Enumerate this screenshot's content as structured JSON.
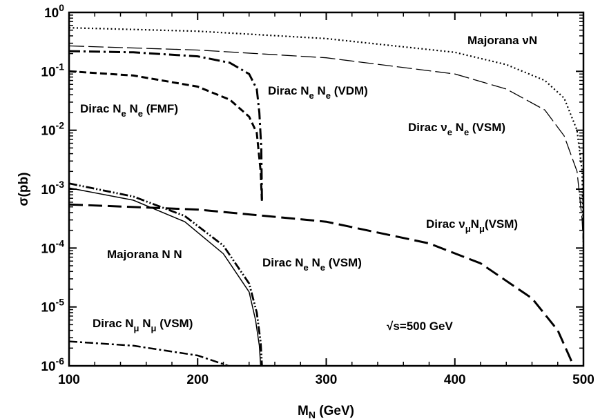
{
  "chart_data": {
    "type": "line",
    "title": "",
    "xlabel": {
      "main": "M",
      "sub": "N",
      "rest": " (GeV)"
    },
    "ylabel": "σ(pb)",
    "xlim": [
      100,
      500
    ],
    "ylim": [
      1e-06,
      1
    ],
    "y_scale": "log",
    "grid": false,
    "x_ticks": [
      "100",
      "200",
      "300",
      "400",
      "500"
    ],
    "y_ticks": [
      {
        "value": 1.0,
        "base": "10",
        "exp": "0"
      },
      {
        "value": 0.1,
        "base": "10",
        "exp": "-1"
      },
      {
        "value": 0.01,
        "base": "10",
        "exp": "-2"
      },
      {
        "value": 0.001,
        "base": "10",
        "exp": "-3"
      },
      {
        "value": 0.0001,
        "base": "10",
        "exp": "-4"
      },
      {
        "value": 1e-05,
        "base": "10",
        "exp": "-5"
      },
      {
        "value": 1e-06,
        "base": "10",
        "exp": "-6"
      }
    ],
    "series": [
      {
        "name": "Majorana νN",
        "style": "dotted",
        "points": [
          [
            100,
            0.55
          ],
          [
            200,
            0.48
          ],
          [
            300,
            0.36
          ],
          [
            400,
            0.21
          ],
          [
            440,
            0.13
          ],
          [
            470,
            0.07
          ],
          [
            485,
            0.035
          ],
          [
            495,
            0.01
          ],
          [
            499,
            0.002
          ],
          [
            500,
            0.0001
          ]
        ]
      },
      {
        "name": "Dirac νe Ne (VSM)",
        "style": "long-dash-thin",
        "points": [
          [
            100,
            0.27
          ],
          [
            200,
            0.23
          ],
          [
            300,
            0.17
          ],
          [
            400,
            0.09
          ],
          [
            440,
            0.05
          ],
          [
            470,
            0.022
          ],
          [
            485,
            0.008
          ],
          [
            495,
            0.002
          ],
          [
            499,
            0.0003
          ],
          [
            500,
            0.0001
          ]
        ]
      },
      {
        "name": "Dirac Ne Ne (VDM)",
        "style": "dash-dot-thick",
        "points": [
          [
            100,
            0.22
          ],
          [
            150,
            0.21
          ],
          [
            200,
            0.18
          ],
          [
            225,
            0.14
          ],
          [
            240,
            0.09
          ],
          [
            246,
            0.05
          ],
          [
            248,
            0.02
          ],
          [
            249.5,
            0.005
          ],
          [
            250,
            0.0006
          ]
        ]
      },
      {
        "name": "Dirac Ne Ne (FMF)",
        "style": "dash-thick",
        "points": [
          [
            100,
            0.1
          ],
          [
            150,
            0.085
          ],
          [
            200,
            0.055
          ],
          [
            225,
            0.033
          ],
          [
            240,
            0.017
          ],
          [
            246,
            0.009
          ],
          [
            249,
            0.002
          ],
          [
            250,
            0.0006
          ]
        ]
      },
      {
        "name": "Dirac νμNμ(VSM)",
        "style": "long-dash-thick",
        "points": [
          [
            100,
            0.00055
          ],
          [
            200,
            0.00045
          ],
          [
            300,
            0.00028
          ],
          [
            380,
            0.00012
          ],
          [
            420,
            5.5e-05
          ],
          [
            460,
            1.4e-05
          ],
          [
            480,
            4e-06
          ],
          [
            490,
            1.3e-06
          ],
          [
            492,
            1e-06
          ]
        ]
      },
      {
        "name": "Dirac Ne Ne (VSM)",
        "style": "dash-dot-dot",
        "points": [
          [
            100,
            0.00125
          ],
          [
            150,
            0.00075
          ],
          [
            190,
            0.00035
          ],
          [
            220,
            0.00011
          ],
          [
            240,
            2.5e-05
          ],
          [
            246,
            8e-06
          ],
          [
            249,
            2.5e-06
          ],
          [
            250,
            1e-06
          ]
        ]
      },
      {
        "name": "Majorana N N",
        "style": "solid",
        "points": [
          [
            100,
            0.00105
          ],
          [
            150,
            0.00065
          ],
          [
            190,
            0.00028
          ],
          [
            220,
            8e-05
          ],
          [
            240,
            1.8e-05
          ],
          [
            245,
            6e-06
          ],
          [
            248,
            2.2e-06
          ],
          [
            249,
            1e-06
          ]
        ]
      },
      {
        "name": "Dirac Nμ Nμ (VSM)",
        "style": "dash-dot",
        "points": [
          [
            100,
            2.6e-06
          ],
          [
            150,
            2.2e-06
          ],
          [
            200,
            1.5e-06
          ],
          [
            224,
            1e-06
          ]
        ]
      }
    ],
    "annotations": [
      {
        "key": "majorana_nuN",
        "parts": [
          {
            "t": "Majorana  "
          },
          {
            "t": "ν",
            "ital": false
          },
          {
            "t": "N"
          }
        ]
      },
      {
        "key": "dirac_NeNe_VDM",
        "parts": [
          {
            "t": "Dirac N"
          },
          {
            "t": "e",
            "sub": true
          },
          {
            "t": " N"
          },
          {
            "t": "e",
            "sub": true
          },
          {
            "t": " (VDM)"
          }
        ]
      },
      {
        "key": "dirac_NeNe_FMF",
        "parts": [
          {
            "t": "Dirac N"
          },
          {
            "t": "e",
            "sub": true
          },
          {
            "t": " N"
          },
          {
            "t": "e",
            "sub": true
          },
          {
            "t": " (FMF)"
          }
        ]
      },
      {
        "key": "dirac_nueNe_VSM",
        "parts": [
          {
            "t": "Dirac  ν"
          },
          {
            "t": "e",
            "sub": true
          },
          {
            "t": " N"
          },
          {
            "t": "e",
            "sub": true
          },
          {
            "t": " (VSM)"
          }
        ]
      },
      {
        "key": "dirac_numuNmu_VSM",
        "parts": [
          {
            "t": "Dirac  ν"
          },
          {
            "t": "μ",
            "sub": true
          },
          {
            "t": "N"
          },
          {
            "t": "μ",
            "sub": true
          },
          {
            "t": "(VSM)"
          }
        ]
      },
      {
        "key": "majorana_NN",
        "parts": [
          {
            "t": "Majorana N N"
          }
        ]
      },
      {
        "key": "dirac_NeNe_VSM",
        "parts": [
          {
            "t": "Dirac N"
          },
          {
            "t": "e",
            "sub": true
          },
          {
            "t": " N"
          },
          {
            "t": "e",
            "sub": true
          },
          {
            "t": " (VSM)"
          }
        ]
      },
      {
        "key": "dirac_NmuNmu_VSM",
        "parts": [
          {
            "t": "Dirac N"
          },
          {
            "t": "μ",
            "sub": true
          },
          {
            "t": " N"
          },
          {
            "t": "μ",
            "sub": true
          },
          {
            "t": " (VSM)"
          }
        ]
      },
      {
        "key": "sqrt_s",
        "parts": [
          {
            "t": "√s=500 GeV"
          }
        ]
      }
    ]
  }
}
